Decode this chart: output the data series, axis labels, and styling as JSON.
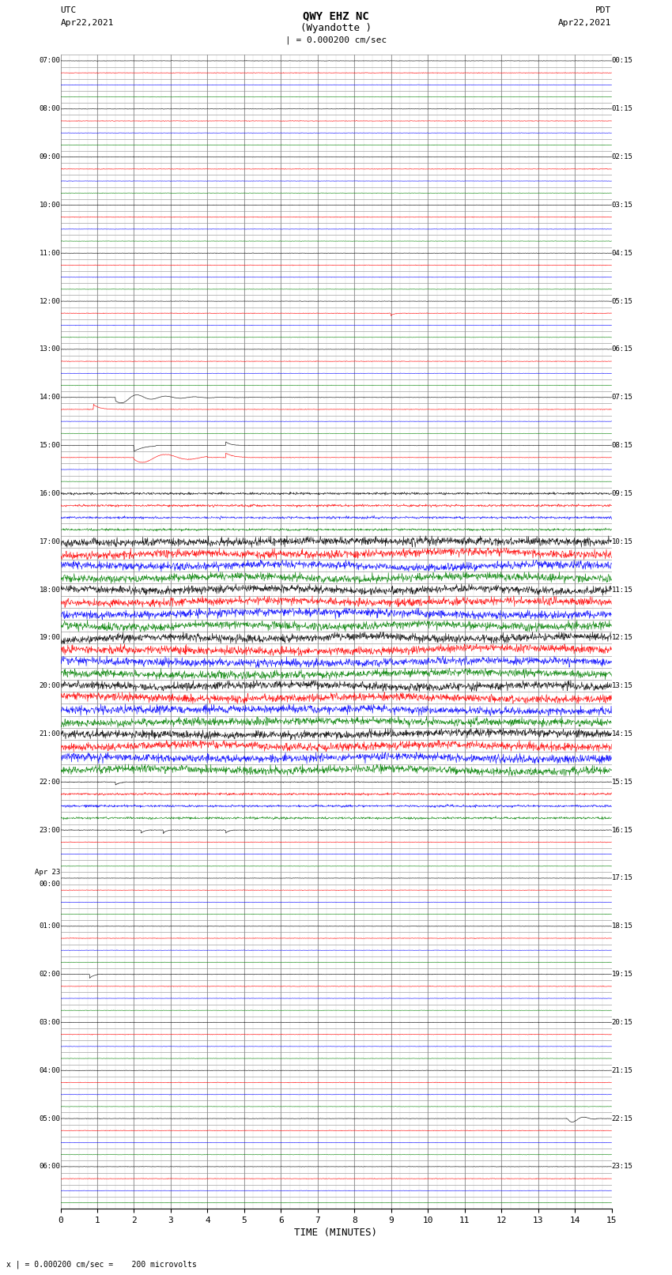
{
  "title_line1": "QWY EHZ NC",
  "title_line2": "(Wyandotte )",
  "title_scale": "| = 0.000200 cm/sec",
  "left_timezone": "UTC",
  "left_date": "Apr22,2021",
  "right_timezone": "PDT",
  "right_date": "Apr22,2021",
  "left_axis_labels": [
    "07:00",
    "",
    "",
    "",
    "08:00",
    "",
    "",
    "",
    "09:00",
    "",
    "",
    "",
    "10:00",
    "",
    "",
    "",
    "11:00",
    "",
    "",
    "",
    "12:00",
    "",
    "",
    "",
    "13:00",
    "",
    "",
    "",
    "14:00",
    "",
    "",
    "",
    "15:00",
    "",
    "",
    "",
    "16:00",
    "",
    "",
    "",
    "17:00",
    "",
    "",
    "",
    "18:00",
    "",
    "",
    "",
    "19:00",
    "",
    "",
    "",
    "20:00",
    "",
    "",
    "",
    "21:00",
    "",
    "",
    "",
    "22:00",
    "",
    "",
    "",
    "23:00",
    "",
    "",
    "",
    "Apr 23\n00:00",
    "",
    "",
    "",
    "01:00",
    "",
    "",
    "",
    "02:00",
    "",
    "",
    "",
    "03:00",
    "",
    "",
    "",
    "04:00",
    "",
    "",
    "",
    "05:00",
    "",
    "",
    "",
    "06:00",
    "",
    "",
    ""
  ],
  "right_axis_labels": [
    "00:15",
    "",
    "",
    "",
    "01:15",
    "",
    "",
    "",
    "02:15",
    "",
    "",
    "",
    "03:15",
    "",
    "",
    "",
    "04:15",
    "",
    "",
    "",
    "05:15",
    "",
    "",
    "",
    "06:15",
    "",
    "",
    "",
    "07:15",
    "",
    "",
    "",
    "08:15",
    "",
    "",
    "",
    "09:15",
    "",
    "",
    "",
    "10:15",
    "",
    "",
    "",
    "11:15",
    "",
    "",
    "",
    "12:15",
    "",
    "",
    "",
    "13:15",
    "",
    "",
    "",
    "14:15",
    "",
    "",
    "",
    "15:15",
    "",
    "",
    "",
    "16:15",
    "",
    "",
    "",
    "17:15",
    "",
    "",
    "",
    "18:15",
    "",
    "",
    "",
    "19:15",
    "",
    "",
    "",
    "20:15",
    "",
    "",
    "",
    "21:15",
    "",
    "",
    "",
    "22:15",
    "",
    "",
    "",
    "23:15",
    "",
    "",
    ""
  ],
  "xlabel": "TIME (MINUTES)",
  "bottom_note": "x | = 0.000200 cm/sec =    200 microvolts",
  "xlim": [
    0,
    15
  ],
  "xticks": [
    0,
    1,
    2,
    3,
    4,
    5,
    6,
    7,
    8,
    9,
    10,
    11,
    12,
    13,
    14,
    15
  ],
  "num_rows": 96,
  "background_color": "#ffffff",
  "grid_color": "#888888",
  "trace_colors_cycle": [
    "#000000",
    "#ff0000",
    "#0000ff",
    "#008000"
  ],
  "noise_amplitude_tiny": 0.03,
  "noise_amplitude_small": 0.08,
  "noise_amplitude_medium": 0.25,
  "noise_amplitude_large": 0.45
}
